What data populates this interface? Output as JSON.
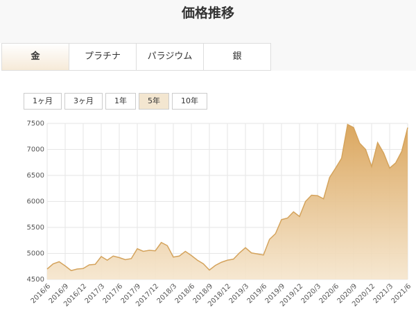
{
  "page": {
    "title": "価格推移",
    "tabs": [
      "金",
      "プラチナ",
      "パラジウム",
      "銀"
    ],
    "periods": [
      "1ヶ月",
      "3ヶ月",
      "1年",
      "5年",
      "10年"
    ]
  },
  "chart_data": {
    "type": "area",
    "color": "#d4a35c",
    "grid": true,
    "categories": [
      "2016/6",
      null,
      null,
      "2016/9",
      null,
      null,
      "2016/12",
      null,
      null,
      "2017/3",
      null,
      null,
      "2017/6",
      null,
      null,
      "2017/9",
      null,
      null,
      "2017/12",
      null,
      null,
      "2018/3",
      null,
      null,
      "2018/6",
      null,
      null,
      "2018/9",
      null,
      null,
      "2018/12",
      null,
      null,
      "2019/3",
      null,
      null,
      "2019/6",
      null,
      null,
      "2019/9",
      null,
      null,
      "2019/12",
      null,
      null,
      "2020/3",
      null,
      null,
      "2020/6",
      null,
      null,
      "2020/9",
      null,
      null,
      "2020/12",
      null,
      null,
      "2021/3",
      null,
      null,
      "2021/6"
    ],
    "values": [
      4700,
      4800,
      4840,
      4760,
      4670,
      4700,
      4710,
      4780,
      4790,
      4940,
      4870,
      4950,
      4920,
      4880,
      4900,
      5090,
      5040,
      5060,
      5050,
      5210,
      5150,
      4930,
      4950,
      5040,
      4960,
      4870,
      4800,
      4680,
      4770,
      4830,
      4870,
      4890,
      5010,
      5110,
      5010,
      4990,
      4970,
      5270,
      5380,
      5650,
      5680,
      5800,
      5710,
      6000,
      6120,
      6110,
      6050,
      6460,
      6640,
      6830,
      7480,
      7420,
      7120,
      7000,
      6670,
      7130,
      6930,
      6640,
      6740,
      6960,
      7420
    ],
    "ylim": [
      4500,
      7500
    ],
    "yticks": [
      4500,
      5000,
      5500,
      6000,
      6500,
      7000,
      7500
    ]
  }
}
